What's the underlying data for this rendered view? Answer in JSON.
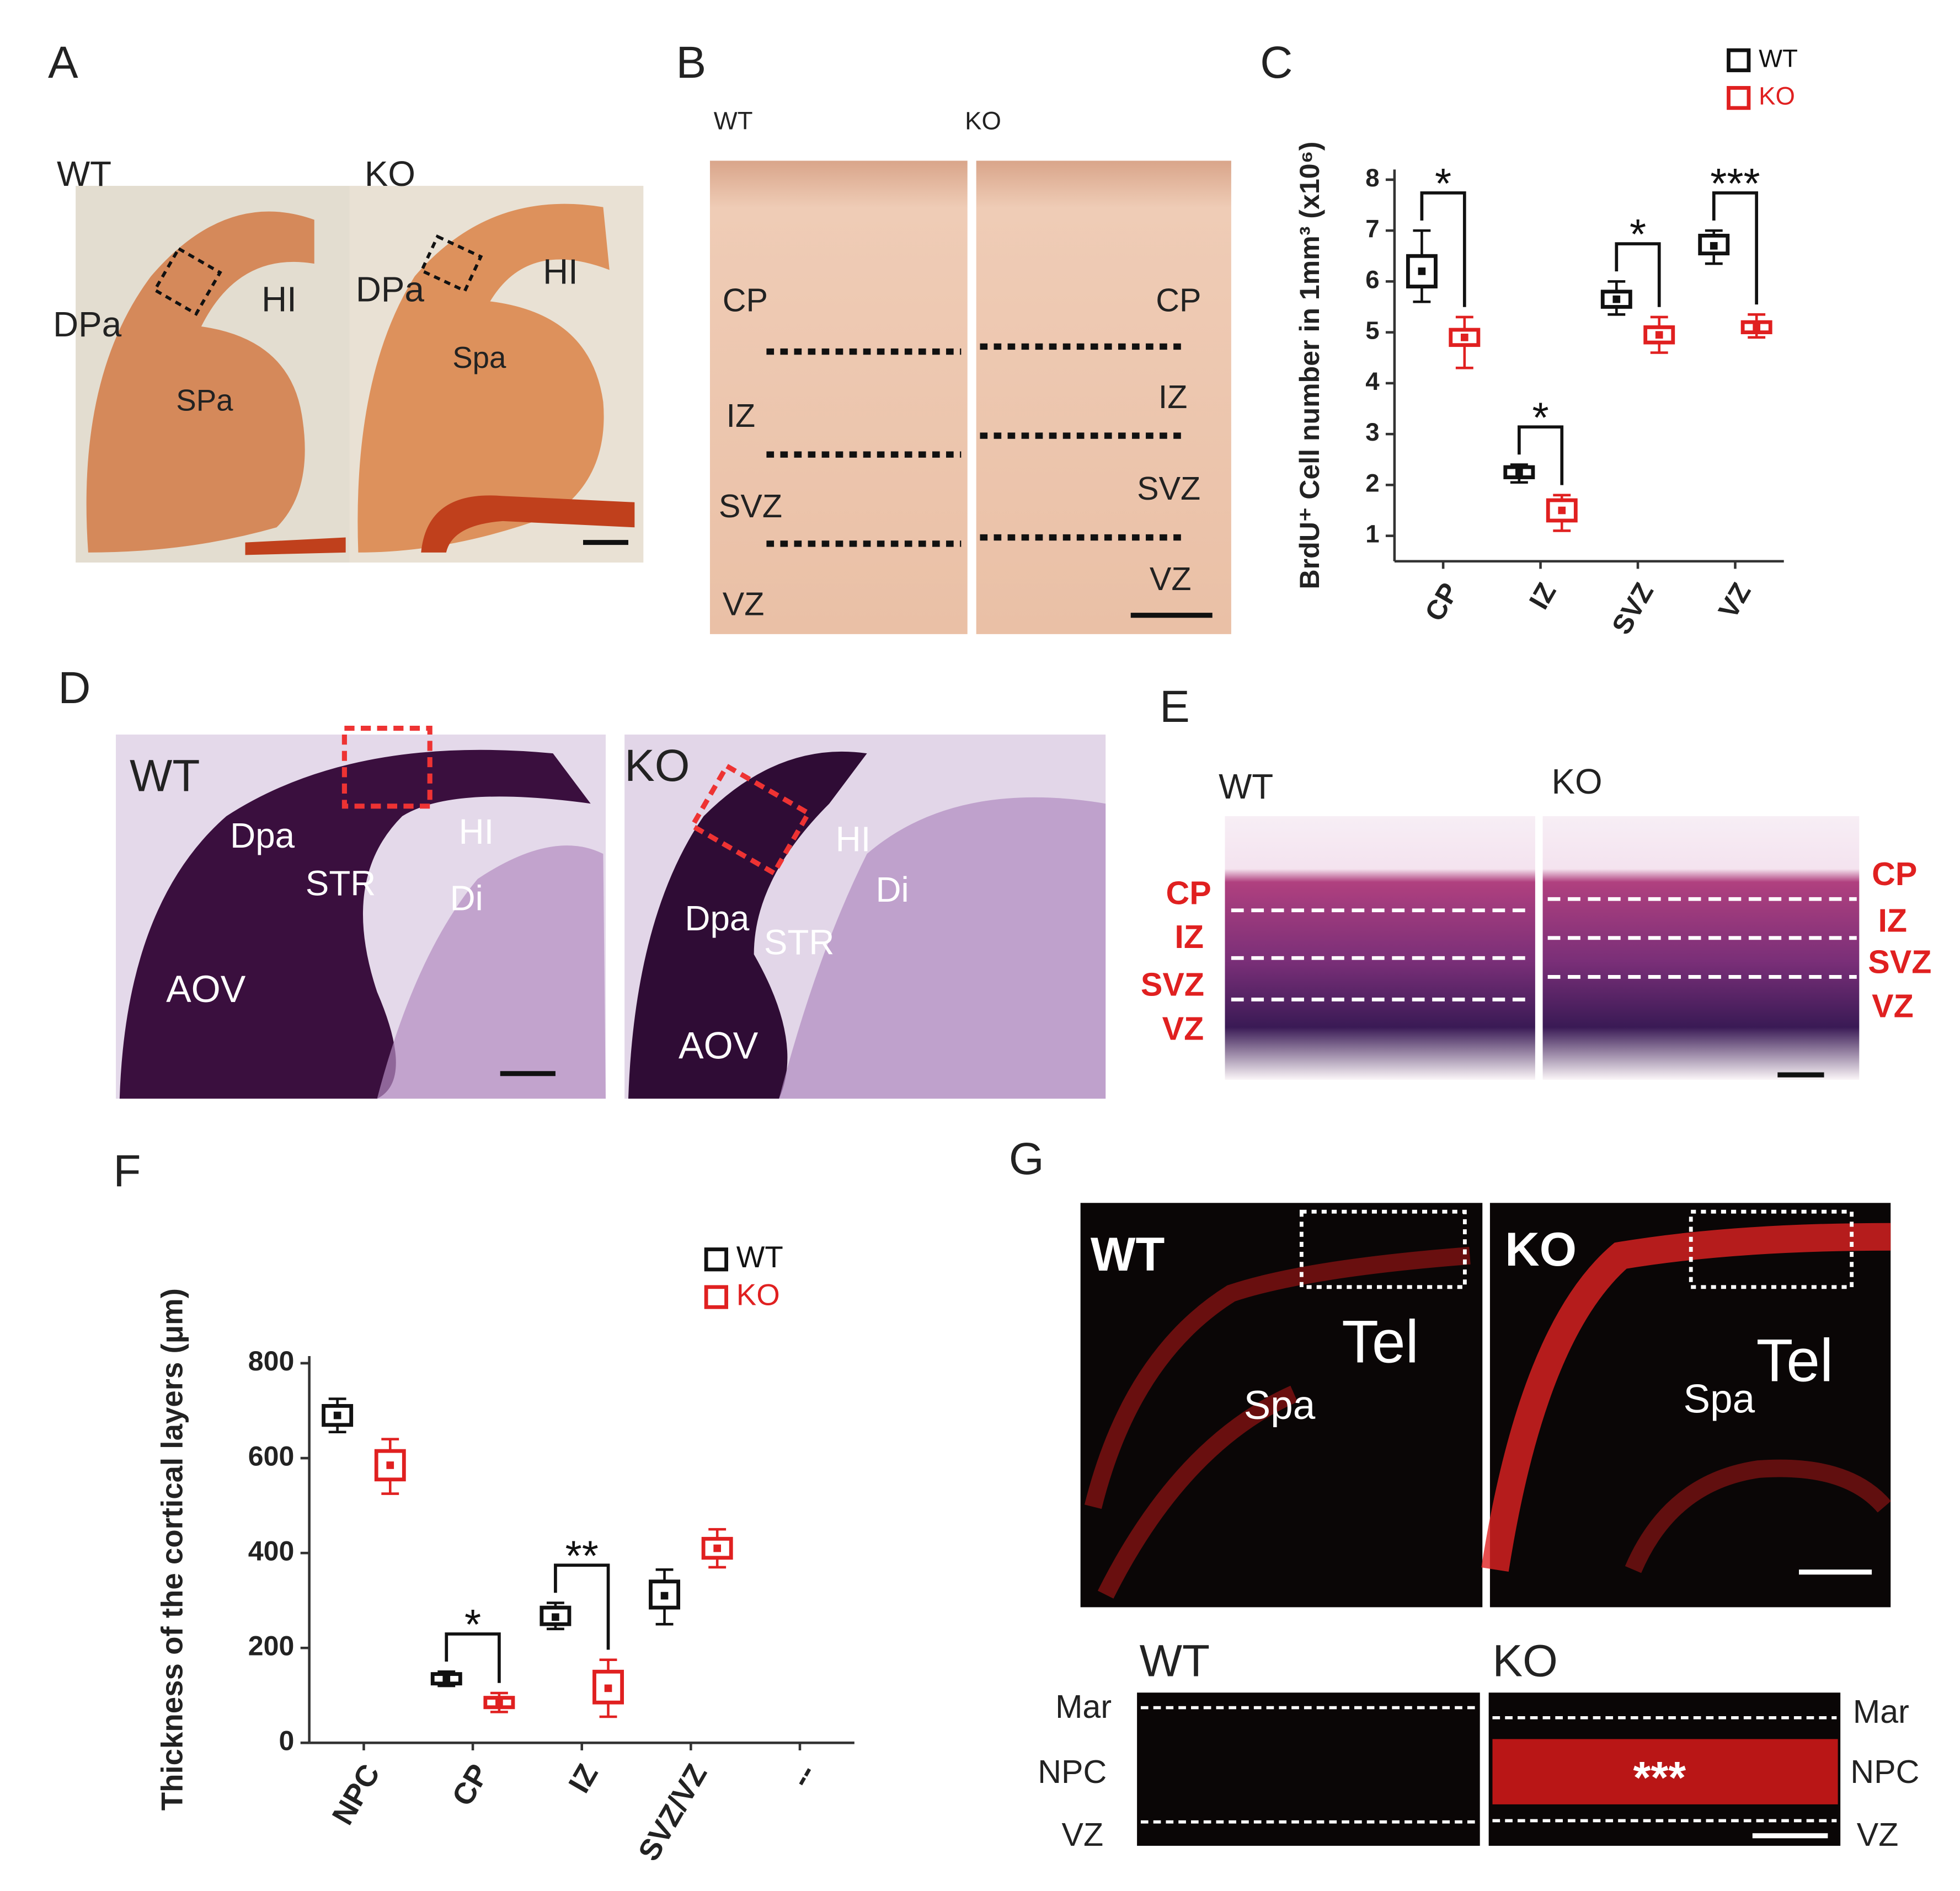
{
  "chart_data": [
    {
      "type": "box",
      "ylabel": "BrdU⁺ Cell number in 1mm³ (x10⁶)",
      "categories": [
        "CP",
        "IZ",
        "SVZ",
        "VZ"
      ],
      "ylim": [
        0.5,
        8.2
      ],
      "yticks": [
        1,
        2,
        3,
        4,
        5,
        6,
        7,
        8
      ],
      "series": [
        {
          "name": "WT",
          "color": "#111111",
          "values": [
            6.2,
            2.25,
            5.65,
            6.7
          ],
          "box_low": [
            5.9,
            2.15,
            5.5,
            6.55
          ],
          "box_high": [
            6.5,
            2.35,
            5.8,
            6.9
          ],
          "whisker_low": [
            5.6,
            2.05,
            5.35,
            6.35
          ],
          "whisker_high": [
            7.0,
            2.4,
            6.0,
            7.0
          ]
        },
        {
          "name": "KO",
          "color": "#e02020",
          "values": [
            4.9,
            1.5,
            4.95,
            5.1
          ],
          "box_low": [
            4.75,
            1.3,
            4.8,
            5.0
          ],
          "box_high": [
            5.05,
            1.7,
            5.1,
            5.2
          ],
          "whisker_low": [
            4.3,
            1.1,
            4.6,
            4.9
          ],
          "whisker_high": [
            5.3,
            1.8,
            5.3,
            5.35
          ]
        }
      ],
      "significance": [
        "*",
        "*",
        "*",
        "***"
      ]
    },
    {
      "type": "box",
      "ylabel": "Thickness of the cortical layers  (μm)",
      "categories": [
        "NPC",
        "CP",
        "IZ",
        "SVZ/VZ",
        "--"
      ],
      "ylim": [
        0,
        815
      ],
      "yticks": [
        0,
        200,
        400,
        600,
        800
      ],
      "series": [
        {
          "name": "WT",
          "color": "#111111",
          "values": [
            690,
            135,
            265,
            310,
            null
          ],
          "box_low": [
            670,
            125,
            250,
            285,
            null
          ],
          "box_high": [
            710,
            145,
            285,
            340,
            null
          ],
          "whisker_low": [
            655,
            120,
            240,
            250,
            null
          ],
          "whisker_high": [
            725,
            150,
            295,
            365,
            null
          ]
        },
        {
          "name": "KO",
          "color": "#e02020",
          "values": [
            585,
            85,
            115,
            410,
            null
          ],
          "box_low": [
            555,
            75,
            85,
            390,
            null
          ],
          "box_high": [
            615,
            95,
            150,
            430,
            null
          ],
          "whisker_low": [
            525,
            65,
            55,
            370,
            null
          ],
          "whisker_high": [
            640,
            105,
            175,
            450,
            null
          ]
        }
      ],
      "significance": [
        null,
        "*",
        "**",
        null,
        null
      ]
    }
  ],
  "panels": {
    "A": {
      "letter": "A",
      "labels": [
        "WT",
        "KO",
        "DPa",
        "HI",
        "SPa",
        "DPa",
        "HI",
        "Spa"
      ]
    },
    "B": {
      "letter": "B",
      "labels": [
        "WT",
        "KO",
        "CP",
        "IZ",
        "SVZ",
        "VZ",
        "CP",
        "IZ",
        "SVZ",
        "VZ"
      ]
    },
    "C": {
      "letter": "C"
    },
    "D": {
      "letter": "D",
      "labels": [
        "WT",
        "KO",
        "Dpa",
        "STR",
        "HI",
        "Di",
        "AOV",
        "Dpa",
        "STR",
        "HI",
        "Di",
        "AOV"
      ]
    },
    "E": {
      "letter": "E",
      "labels": [
        "WT",
        "KO",
        "CP",
        "IZ",
        "SVZ",
        "VZ",
        "CP",
        "IZ",
        "SVZ",
        "VZ"
      ]
    },
    "F": {
      "letter": "F"
    },
    "G": {
      "letter": "G",
      "labels": [
        "WT",
        "Tel",
        "Spa",
        "KO",
        "Spa",
        "Tel",
        "WT",
        "KO",
        "Mar",
        "NPC",
        "VZ",
        "Mar",
        "NPC",
        "VZ",
        "***"
      ]
    }
  }
}
